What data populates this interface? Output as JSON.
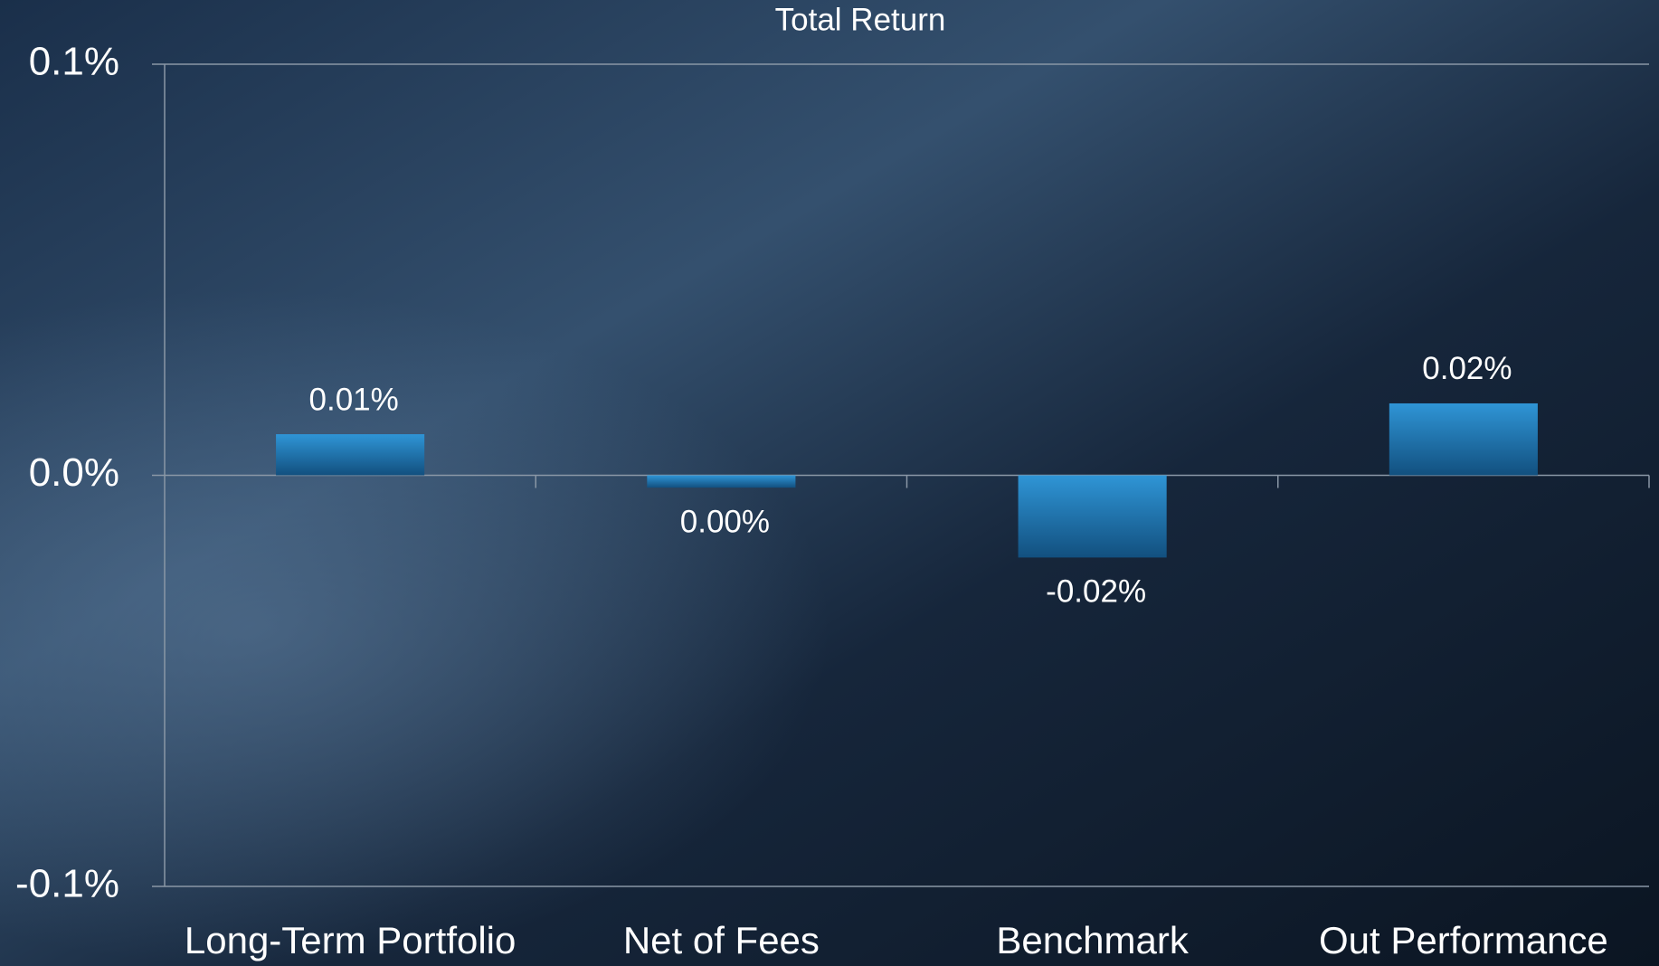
{
  "chart_data": {
    "type": "bar",
    "title": "Total Return",
    "categories": [
      "Long-Term Portfolio",
      "Net of Fees",
      "Benchmark",
      "Out Performance"
    ],
    "values": [
      0.01,
      -0.003,
      -0.02,
      0.0175
    ],
    "value_labels": [
      "0.01%",
      "0.00%",
      "-0.02%",
      "0.02%"
    ],
    "color": "#1f7cbf",
    "ylim": [
      -0.1,
      0.1
    ],
    "yticks": [
      {
        "value": -0.1,
        "label": "-0.1%"
      },
      {
        "value": 0.0,
        "label": "0.0%"
      },
      {
        "value": 0.1,
        "label": "0.1%"
      }
    ],
    "grid": true
  }
}
